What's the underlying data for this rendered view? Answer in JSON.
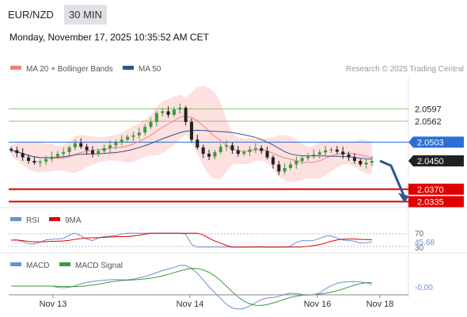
{
  "header": {
    "pair": "EUR/NZD",
    "timeframe": "30 MIN",
    "datetime": "Monday, November 17, 2025 10:35:52 AM CET"
  },
  "legend": {
    "ma20_bollinger": "MA 20 + Bollinger Bands",
    "ma50": "MA 50",
    "credit": "Research © 2025 Trading Central"
  },
  "colors": {
    "ma20": "#f08080",
    "ma50": "#2e5590",
    "bollinger_fill": "#fde0e0",
    "candle_up": "#3c9a3c",
    "candle_down": "#222222",
    "resistance": "#8dc56c",
    "pivot": "#2a6fd6",
    "support": "#e00000",
    "last_price": "#222222",
    "rsi": "#6d8fd6",
    "rsi_9ma": "#e00000",
    "macd": "#6d8fd6",
    "macd_signal": "#3c9a3c",
    "forecast_arrow": "#2e5590"
  },
  "rsi_panel": {
    "label": "RSI",
    "ma_label": "9MA",
    "upper": "70",
    "lower": "30",
    "value": "45.68"
  },
  "macd_panel": {
    "label": "MACD",
    "signal_label": "MACD Signal",
    "value": "-0.00"
  },
  "chart_data": {
    "type": "candlestick",
    "x_ticks": [
      "Nov 13",
      "Nov 14",
      "Nov 16",
      "Nov 18"
    ],
    "y_range": [
      2.0318,
      2.0685
    ],
    "levels": [
      {
        "label": "2.0597",
        "value": 2.0597,
        "kind": "resistance"
      },
      {
        "label": "2.0562",
        "value": 2.0562,
        "kind": "resistance"
      },
      {
        "label": "2.0503",
        "value": 2.0503,
        "kind": "pivot"
      },
      {
        "label": "2.0450",
        "value": 2.045,
        "kind": "last"
      },
      {
        "label": "2.0370",
        "value": 2.037,
        "kind": "support"
      },
      {
        "label": "2.0335",
        "value": 2.0335,
        "kind": "support"
      }
    ],
    "forecast_target": 2.0335,
    "close_series": [
      2.048,
      2.0472,
      2.046,
      2.045,
      2.0445,
      2.0448,
      2.0455,
      2.0462,
      2.047,
      2.0475,
      2.0488,
      2.05,
      2.049,
      2.048,
      2.047,
      2.0478,
      2.0486,
      2.0494,
      2.0502,
      2.051,
      2.0518,
      2.0522,
      2.053,
      2.0546,
      2.056,
      2.0585,
      2.059,
      2.058,
      2.0595,
      2.06,
      2.056,
      2.051,
      2.0488,
      2.047,
      2.0462,
      2.0475,
      2.049,
      2.0494,
      2.048,
      2.047,
      2.0475,
      2.0482,
      2.0486,
      2.0478,
      2.046,
      2.044,
      2.042,
      2.043,
      2.044,
      2.045,
      2.0458,
      2.0462,
      2.0468,
      2.0474,
      2.048,
      2.0482,
      2.0476,
      2.0468,
      2.046,
      2.045,
      2.044,
      2.0445,
      2.045
    ]
  }
}
